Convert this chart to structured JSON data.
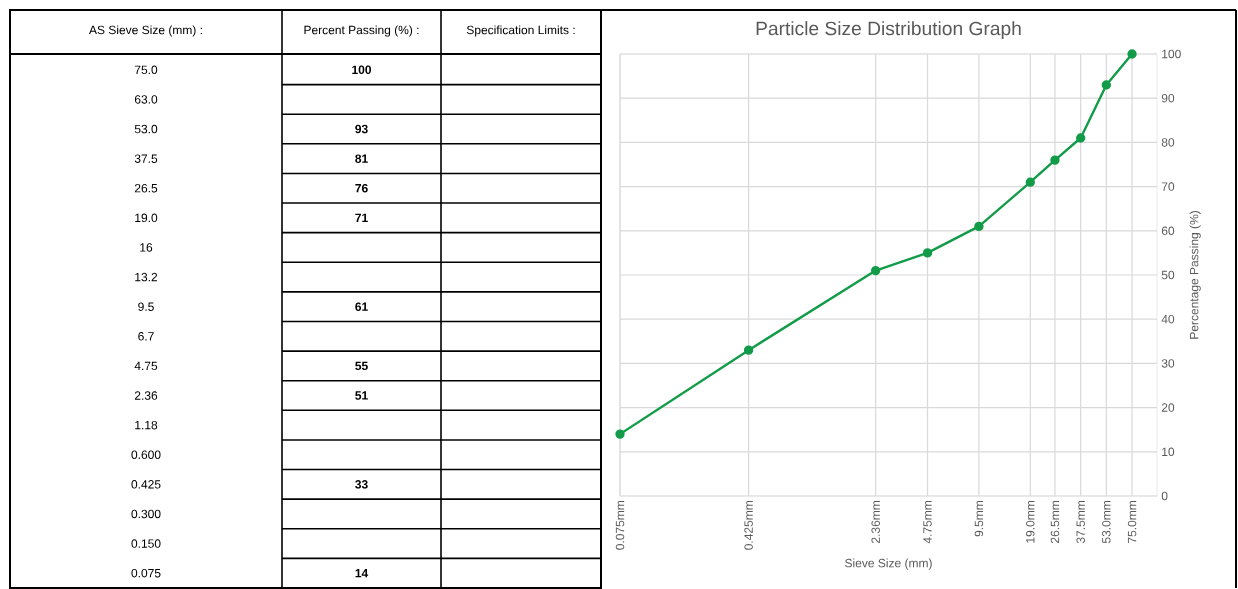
{
  "chart_data": [
    {
      "type": "other",
      "annotations": [
        "AS Sieve Size (mm) :",
        "Percent Passing (%) :",
        "Specification Limits :"
      ],
      "categories": [
        "75.0",
        "63.0",
        "53.0",
        "37.5",
        "26.5",
        "19.0",
        "16",
        "13.2",
        "9.5",
        "6.7",
        "4.75",
        "2.36",
        "1.18",
        "0.600",
        "0.425",
        "0.300",
        "0.150",
        "0.075"
      ],
      "values": [
        100,
        null,
        93,
        81,
        76,
        71,
        null,
        null,
        61,
        null,
        55,
        51,
        null,
        null,
        33,
        null,
        null,
        14
      ],
      "value_labels": [
        "100",
        null,
        "93",
        "81",
        "76",
        "71",
        null,
        null,
        "61",
        null,
        "55",
        "51",
        null,
        null,
        "33",
        null,
        null,
        "14"
      ]
    },
    {
      "type": "line",
      "title": "Particle Size Distribution Graph",
      "xlabel": "Sieve Size (mm)",
      "ylabel": "Percentage Passing (%)",
      "log": "x",
      "x": [
        0.075,
        0.425,
        2.36,
        4.75,
        9.5,
        19.0,
        26.5,
        37.5,
        53.0,
        75.0
      ],
      "values": [
        14,
        33,
        51,
        55,
        61,
        71,
        76,
        81,
        93,
        100
      ],
      "color": "#129b48",
      "marker": "circle",
      "grid": true,
      "xlim": [
        0.075,
        105
      ],
      "ylim": [
        0,
        100
      ],
      "xticks": [
        {
          "value": 0.075,
          "label": "0.075mm"
        },
        {
          "value": 0.425,
          "label": "0.425mm"
        },
        {
          "value": 2.36,
          "label": "2.36mm"
        },
        {
          "value": 4.75,
          "label": "4.75mm"
        },
        {
          "value": 9.5,
          "label": "9.5mm"
        },
        {
          "value": 19.0,
          "label": "19.0mm"
        },
        {
          "value": 26.5,
          "label": "26.5mm"
        },
        {
          "value": 37.5,
          "label": "37.5mm"
        },
        {
          "value": 53.0,
          "label": "53.0mm"
        },
        {
          "value": 75.0,
          "label": "75.0mm"
        }
      ],
      "yticks": [
        0,
        10,
        20,
        30,
        40,
        50,
        60,
        70,
        80,
        90,
        100
      ]
    }
  ]
}
